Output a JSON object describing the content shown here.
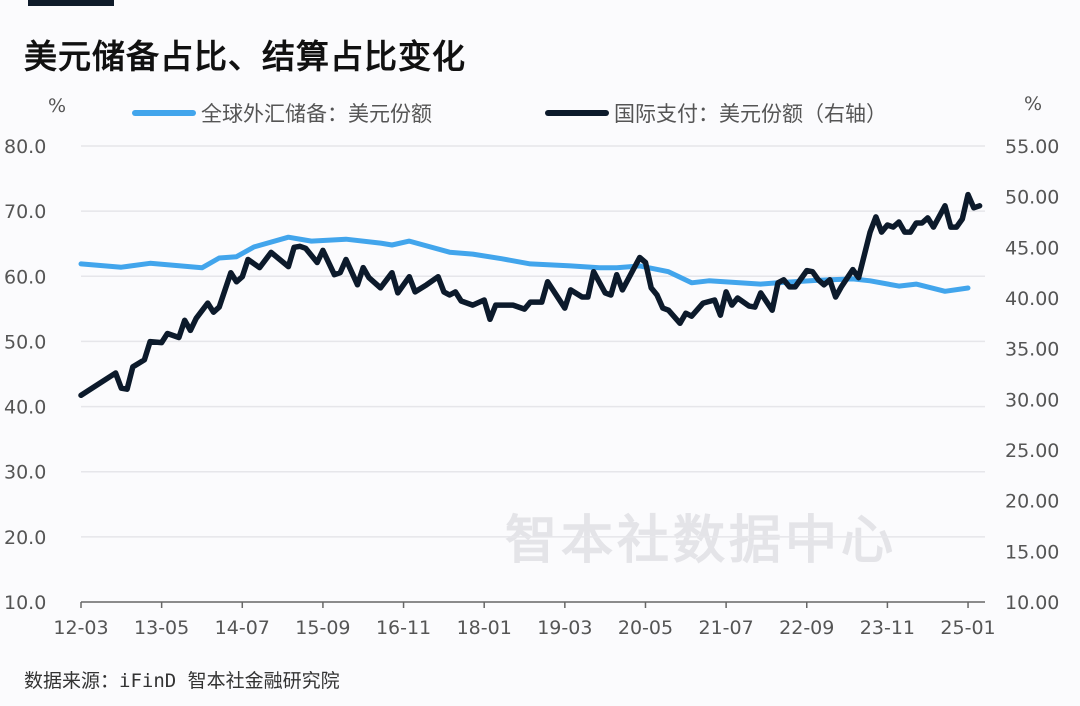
{
  "title": "美元储备占比、结算占比变化",
  "source": "数据来源：iFinD 智本社金融研究院",
  "watermark": "智本社数据中心",
  "chart_data": {
    "type": "line",
    "title": "美元储备占比、结算占比变化",
    "left_unit": "%",
    "right_unit": "%",
    "ylim_left": [
      10,
      80
    ],
    "ylim_right": [
      10,
      55
    ],
    "left_ticks": [
      "10.0",
      "20.0",
      "30.0",
      "40.0",
      "50.0",
      "60.0",
      "70.0",
      "80.0"
    ],
    "right_ticks": [
      "10.00",
      "15.00",
      "20.00",
      "25.00",
      "30.00",
      "35.00",
      "40.00",
      "45.00",
      "50.00",
      "55.00"
    ],
    "x_ticks": [
      "12-03",
      "13-05",
      "14-07",
      "15-09",
      "16-11",
      "18-01",
      "19-03",
      "20-05",
      "21-07",
      "22-09",
      "23-11",
      "25-01"
    ],
    "grid": true,
    "legend_position": "top",
    "series": [
      {
        "name": "全球外汇储备：美元份额",
        "axis": "left",
        "color": "#42a5ec",
        "points": [
          [
            "2012-03",
            61.9
          ],
          [
            "2012-10",
            61.4
          ],
          [
            "2013-03",
            62.0
          ],
          [
            "2013-12",
            61.3
          ],
          [
            "2014-03",
            62.8
          ],
          [
            "2014-06",
            63.0
          ],
          [
            "2014-09",
            64.5
          ],
          [
            "2015-03",
            66.0
          ],
          [
            "2015-07",
            65.4
          ],
          [
            "2016-01",
            65.7
          ],
          [
            "2016-07",
            65.1
          ],
          [
            "2016-09",
            64.8
          ],
          [
            "2016-12",
            65.4
          ],
          [
            "2017-07",
            63.7
          ],
          [
            "2017-11",
            63.4
          ],
          [
            "2018-04",
            62.7
          ],
          [
            "2018-09",
            61.9
          ],
          [
            "2019-04",
            61.6
          ],
          [
            "2019-09",
            61.3
          ],
          [
            "2019-12",
            61.3
          ],
          [
            "2020-04",
            61.6
          ],
          [
            "2020-09",
            60.7
          ],
          [
            "2021-01",
            59.0
          ],
          [
            "2021-04",
            59.3
          ],
          [
            "2022-01",
            58.8
          ],
          [
            "2022-04",
            59.0
          ],
          [
            "2022-11",
            59.4
          ],
          [
            "2023-05",
            59.6
          ],
          [
            "2023-08",
            59.3
          ],
          [
            "2024-01",
            58.5
          ],
          [
            "2024-04",
            58.8
          ],
          [
            "2024-09",
            57.7
          ],
          [
            "2025-01",
            58.2
          ]
        ]
      },
      {
        "name": "国际支付：美元份额（右轴）",
        "axis": "right",
        "color": "#0c1a2b",
        "points": [
          [
            "2012-03",
            30.4
          ],
          [
            "2012-09",
            32.6
          ],
          [
            "2012-10",
            31.1
          ],
          [
            "2012-11",
            31.0
          ],
          [
            "2012-12",
            33.2
          ],
          [
            "2013-02",
            33.9
          ],
          [
            "2013-03",
            35.7
          ],
          [
            "2013-05",
            35.6
          ],
          [
            "2013-06",
            36.5
          ],
          [
            "2013-08",
            36.1
          ],
          [
            "2013-09",
            37.8
          ],
          [
            "2013-10",
            36.8
          ],
          [
            "2013-11",
            38.0
          ],
          [
            "2014-01",
            39.5
          ],
          [
            "2014-02",
            38.6
          ],
          [
            "2014-03",
            39.1
          ],
          [
            "2014-05",
            42.5
          ],
          [
            "2014-06",
            41.6
          ],
          [
            "2014-07",
            42.1
          ],
          [
            "2014-08",
            43.8
          ],
          [
            "2014-10",
            43.0
          ],
          [
            "2014-12",
            44.5
          ],
          [
            "2015-03",
            43.1
          ],
          [
            "2015-04",
            45.0
          ],
          [
            "2015-05",
            45.1
          ],
          [
            "2015-06",
            44.9
          ],
          [
            "2015-08",
            43.5
          ],
          [
            "2015-09",
            44.7
          ],
          [
            "2015-11",
            42.3
          ],
          [
            "2015-12",
            42.5
          ],
          [
            "2016-01",
            43.8
          ],
          [
            "2016-03",
            41.3
          ],
          [
            "2016-04",
            43.0
          ],
          [
            "2016-05",
            42.0
          ],
          [
            "2016-07",
            41.0
          ],
          [
            "2016-09",
            42.5
          ],
          [
            "2016-10",
            40.5
          ],
          [
            "2016-12",
            42.1
          ],
          [
            "2017-01",
            40.6
          ],
          [
            "2017-03",
            41.3
          ],
          [
            "2017-05",
            42.1
          ],
          [
            "2017-06",
            40.6
          ],
          [
            "2017-07",
            40.3
          ],
          [
            "2017-08",
            40.6
          ],
          [
            "2017-09",
            39.7
          ],
          [
            "2017-11",
            39.3
          ],
          [
            "2018-01",
            39.8
          ],
          [
            "2018-02",
            37.9
          ],
          [
            "2018-03",
            39.3
          ],
          [
            "2018-06",
            39.3
          ],
          [
            "2018-08",
            38.9
          ],
          [
            "2018-09",
            39.6
          ],
          [
            "2018-11",
            39.6
          ],
          [
            "2018-12",
            41.6
          ],
          [
            "2019-03",
            39.0
          ],
          [
            "2019-04",
            40.8
          ],
          [
            "2019-06",
            40.1
          ],
          [
            "2019-07",
            40.1
          ],
          [
            "2019-08",
            42.6
          ],
          [
            "2019-10",
            40.5
          ],
          [
            "2019-11",
            40.3
          ],
          [
            "2019-12",
            42.3
          ],
          [
            "2020-01",
            40.8
          ],
          [
            "2020-04",
            44.0
          ],
          [
            "2020-05",
            43.5
          ],
          [
            "2020-06",
            41.0
          ],
          [
            "2020-07",
            40.3
          ],
          [
            "2020-08",
            39.0
          ],
          [
            "2020-09",
            38.8
          ],
          [
            "2020-11",
            37.5
          ],
          [
            "2020-12",
            38.5
          ],
          [
            "2021-01",
            38.2
          ],
          [
            "2021-03",
            39.5
          ],
          [
            "2021-05",
            39.8
          ],
          [
            "2021-06",
            38.3
          ],
          [
            "2021-07",
            40.6
          ],
          [
            "2021-08",
            39.3
          ],
          [
            "2021-09",
            40.0
          ],
          [
            "2021-11",
            39.2
          ],
          [
            "2021-12",
            39.1
          ],
          [
            "2022-01",
            40.5
          ],
          [
            "2022-03",
            38.8
          ],
          [
            "2022-04",
            41.5
          ],
          [
            "2022-05",
            41.8
          ],
          [
            "2022-06",
            41.1
          ],
          [
            "2022-07",
            41.1
          ],
          [
            "2022-09",
            42.7
          ],
          [
            "2022-10",
            42.6
          ],
          [
            "2022-11",
            41.8
          ],
          [
            "2022-12",
            41.3
          ],
          [
            "2023-01",
            41.8
          ],
          [
            "2023-02",
            40.1
          ],
          [
            "2023-03",
            41.1
          ],
          [
            "2023-05",
            42.8
          ],
          [
            "2023-06",
            42.0
          ],
          [
            "2023-08",
            46.5
          ],
          [
            "2023-09",
            48.0
          ],
          [
            "2023-10",
            46.5
          ],
          [
            "2023-11",
            47.2
          ],
          [
            "2023-12",
            47.0
          ],
          [
            "2024-01",
            47.5
          ],
          [
            "2024-02",
            46.5
          ],
          [
            "2024-03",
            46.5
          ],
          [
            "2024-04",
            47.4
          ],
          [
            "2024-05",
            47.4
          ],
          [
            "2024-06",
            47.9
          ],
          [
            "2024-07",
            47.0
          ],
          [
            "2024-09",
            49.1
          ],
          [
            "2024-10",
            47.0
          ],
          [
            "2024-11",
            47.0
          ],
          [
            "2024-12",
            47.8
          ],
          [
            "2025-01",
            50.2
          ],
          [
            "2025-02",
            48.9
          ],
          [
            "2025-03",
            49.1
          ]
        ]
      }
    ]
  }
}
